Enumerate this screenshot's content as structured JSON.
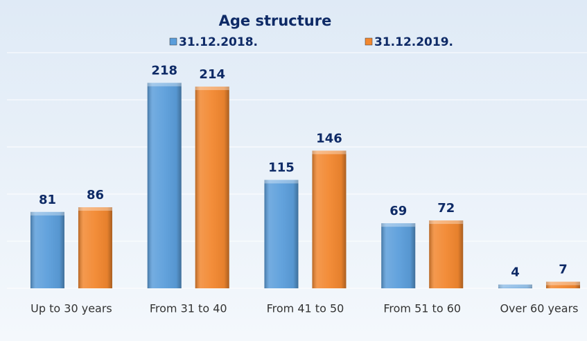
{
  "chart_data": {
    "type": "bar",
    "title": "Age structure",
    "categories": [
      "Up to 30 years",
      "From 31 to 40",
      "From 41 to 50",
      "From 51 to 60",
      "Over 60 years"
    ],
    "series": [
      {
        "name": "31.12.2018.",
        "color": "#5b9edb",
        "values": [
          81,
          218,
          115,
          69,
          4
        ]
      },
      {
        "name": "31.12.2019.",
        "color": "#f2872f",
        "values": [
          86,
          214,
          146,
          72,
          7
        ]
      }
    ],
    "ylim": [
      0,
      250
    ],
    "yticks": [
      0,
      50,
      100,
      150,
      200,
      250
    ],
    "grid": true,
    "legend": "top"
  }
}
